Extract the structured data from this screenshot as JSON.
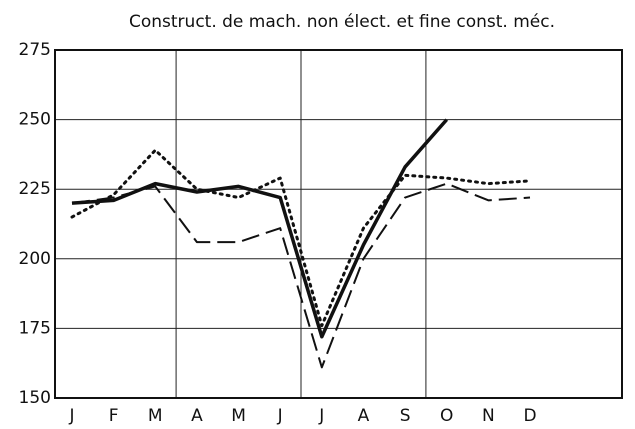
{
  "chart_data": {
    "type": "line",
    "title": "Construct. de mach. non élect. et fine const. méc.",
    "categories": [
      "J",
      "F",
      "M",
      "A",
      "M",
      "J",
      "J",
      "A",
      "S",
      "O",
      "N",
      "D"
    ],
    "series": [
      {
        "color": "#111111",
        "dash": "solid",
        "width": 3.5,
        "values": [
          220,
          221,
          227,
          224,
          226,
          222,
          172,
          205,
          233,
          250,
          null,
          null
        ]
      },
      {
        "color": "#111111",
        "dash": "dotted",
        "width": 3,
        "values": [
          215,
          223,
          239,
          225,
          222,
          229,
          176,
          211,
          230,
          229,
          227,
          228
        ]
      },
      {
        "color": "#111111",
        "dash": "dashed",
        "width": 2,
        "values": [
          220,
          222,
          226,
          206,
          206,
          211,
          161,
          200,
          222,
          227,
          221,
          222
        ]
      }
    ],
    "ylim": [
      150,
      275
    ],
    "yticks": [
      150,
      175,
      200,
      225,
      250,
      275
    ],
    "grid": true
  }
}
